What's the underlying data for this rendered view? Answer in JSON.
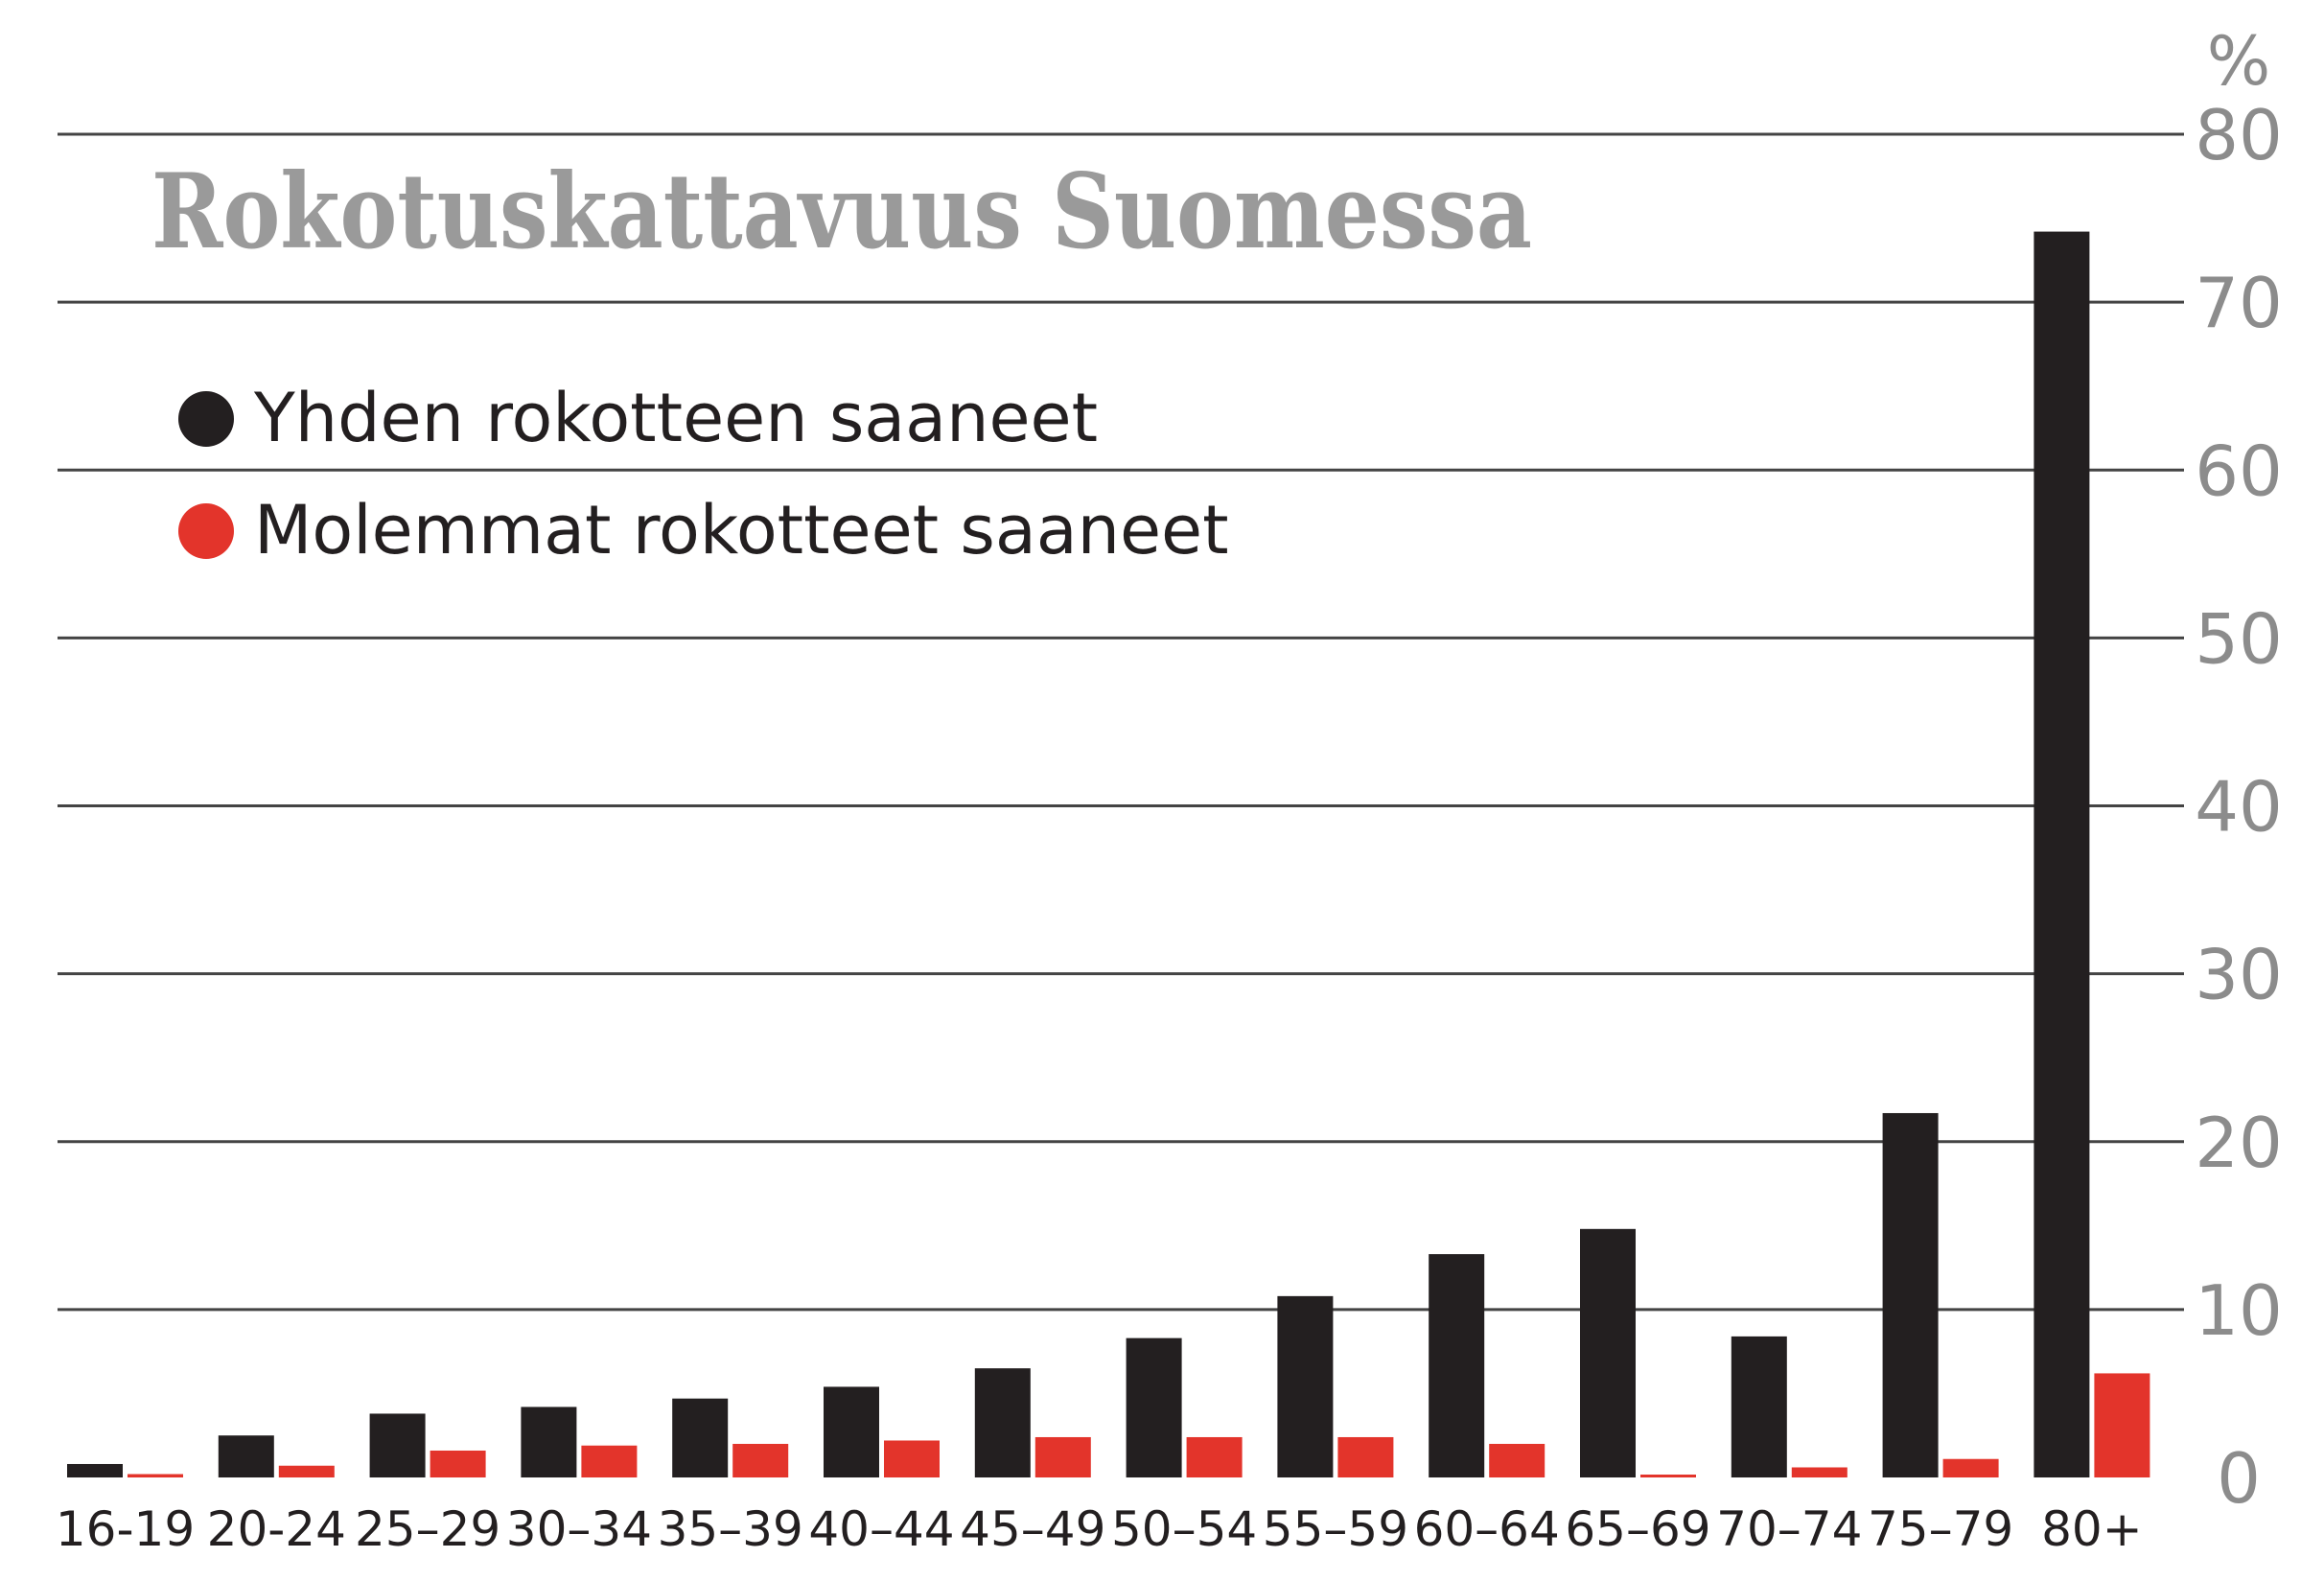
{
  "chart_data": {
    "type": "bar",
    "title": "Rokotuskattavuus Suomessa",
    "ylabel": "%",
    "ylim": [
      0,
      80
    ],
    "yticks": [
      0,
      10,
      20,
      30,
      40,
      50,
      60,
      70,
      80
    ],
    "grid": true,
    "legend_position": "top-left",
    "categories": [
      "16-19",
      "20-24",
      "25–29",
      "30–34",
      "35–39",
      "40–44",
      "45–49",
      "50–54",
      "55–59",
      "60–64",
      "65–69",
      "70–74",
      "75–79",
      "80+"
    ],
    "series": [
      {
        "name": "Yhden rokotteen saaneet",
        "color": "#231f20",
        "values": [
          0.8,
          2.5,
          3.8,
          4.2,
          4.7,
          5.4,
          6.5,
          8.3,
          10.8,
          13.3,
          14.8,
          8.4,
          21.7,
          74.2
        ]
      },
      {
        "name": "Molemmat rokotteet saaneet",
        "color": "#e3342b",
        "values": [
          0.2,
          0.7,
          1.6,
          1.9,
          2.0,
          2.2,
          2.4,
          2.4,
          2.4,
          2.0,
          0.1,
          0.6,
          1.1,
          6.2
        ]
      }
    ]
  }
}
